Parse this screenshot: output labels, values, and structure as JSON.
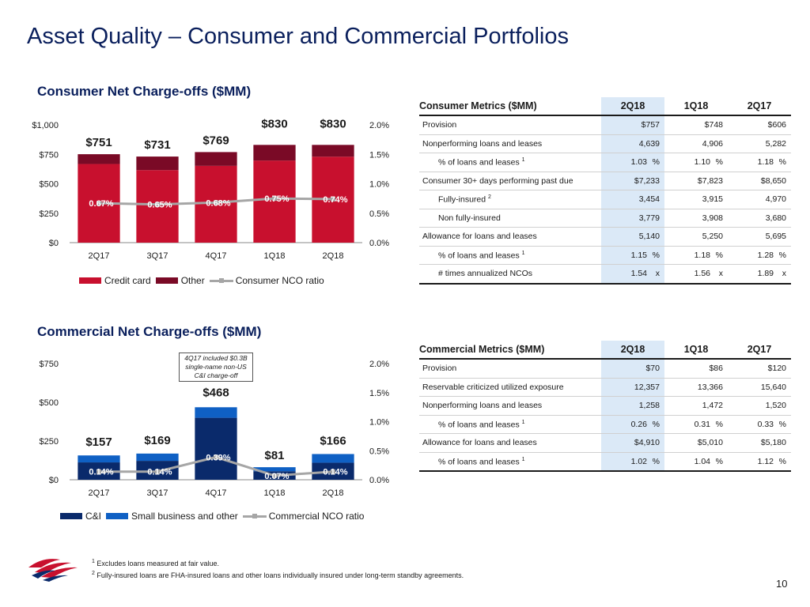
{
  "title": "Asset Quality – Consumer and Commercial Portfolios",
  "consumer_section": {
    "title": "Consumer Net Charge-offs ($MM)",
    "legend": [
      "Credit card",
      "Other",
      "Consumer NCO ratio"
    ],
    "annotation": ""
  },
  "commercial_section": {
    "title": "Commercial Net Charge-offs ($MM)",
    "legend": [
      "C&I",
      "Small business and other",
      "Commercial NCO ratio"
    ],
    "annotation": "4Q17 included $0.3B single-name non-US C&I charge-off"
  },
  "consumer_table": {
    "header": [
      "Consumer Metrics ($MM)",
      "2Q18",
      "1Q18",
      "2Q17"
    ],
    "rows": [
      {
        "label": "Provision",
        "indent": false,
        "sup": "",
        "v": [
          "$757",
          "$748",
          "$606"
        ],
        "unit": ""
      },
      {
        "label": "Nonperforming loans and leases",
        "indent": false,
        "sup": "",
        "v": [
          "4,639",
          "4,906",
          "5,282"
        ],
        "unit": ""
      },
      {
        "label": "% of loans and leases",
        "indent": true,
        "sup": "1",
        "v": [
          "1.03",
          "1.10",
          "1.18"
        ],
        "unit": "%"
      },
      {
        "label": "Consumer 30+ days performing past due",
        "indent": false,
        "sup": "",
        "v": [
          "$7,233",
          "$7,823",
          "$8,650"
        ],
        "unit": ""
      },
      {
        "label": "Fully-insured",
        "indent": true,
        "sup": "2",
        "v": [
          "3,454",
          "3,915",
          "4,970"
        ],
        "unit": ""
      },
      {
        "label": "Non fully-insured",
        "indent": true,
        "sup": "",
        "v": [
          "3,779",
          "3,908",
          "3,680"
        ],
        "unit": ""
      },
      {
        "label": "Allowance for loans and leases",
        "indent": false,
        "sup": "",
        "v": [
          "5,140",
          "5,250",
          "5,695"
        ],
        "unit": ""
      },
      {
        "label": "% of loans and leases",
        "indent": true,
        "sup": "1",
        "v": [
          "1.15",
          "1.18",
          "1.28"
        ],
        "unit": "%"
      },
      {
        "label": "# times annualized NCOs",
        "indent": true,
        "sup": "",
        "v": [
          "1.54",
          "1.56",
          "1.89"
        ],
        "unit": "x"
      }
    ]
  },
  "commercial_table": {
    "header": [
      "Commercial Metrics ($MM)",
      "2Q18",
      "1Q18",
      "2Q17"
    ],
    "rows": [
      {
        "label": "Provision",
        "indent": false,
        "sup": "",
        "v": [
          "$70",
          "$86",
          "$120"
        ],
        "unit": ""
      },
      {
        "label": "Reservable criticized utilized exposure",
        "indent": false,
        "sup": "",
        "v": [
          "12,357",
          "13,366",
          "15,640"
        ],
        "unit": ""
      },
      {
        "label": "Nonperforming loans and leases",
        "indent": false,
        "sup": "",
        "v": [
          "1,258",
          "1,472",
          "1,520"
        ],
        "unit": ""
      },
      {
        "label": "% of loans and leases",
        "indent": true,
        "sup": "1",
        "v": [
          "0.26",
          "0.31",
          "0.33"
        ],
        "unit": "%"
      },
      {
        "label": "Allowance for loans and leases",
        "indent": false,
        "sup": "",
        "v": [
          "$4,910",
          "$5,010",
          "$5,180"
        ],
        "unit": ""
      },
      {
        "label": "% of loans and leases",
        "indent": true,
        "sup": "1",
        "v": [
          "1.02",
          "1.04",
          "1.12"
        ],
        "unit": "%"
      }
    ]
  },
  "footnotes": [
    {
      "num": "1",
      "text": "Excludes loans measured at fair value."
    },
    {
      "num": "2",
      "text": "Fully-insured loans are FHA-insured loans and other loans individually insured under long-term standby agreements."
    }
  ],
  "page_number": "10",
  "colors": {
    "credit_card": "#c8102e",
    "other": "#7a0a26",
    "ci": "#0a2a6b",
    "small_business": "#0f60c4",
    "ratio_line": "#a6a6a6",
    "title": "#0a1f5c",
    "highlight": "#dbe9f7"
  },
  "chart_data": [
    {
      "type": "bar",
      "stacked": true,
      "categories": [
        "2Q17",
        "3Q17",
        "4Q17",
        "1Q18",
        "2Q18"
      ],
      "series": [
        {
          "name": "Credit card",
          "values": [
            668,
            616,
            652,
            697,
            730
          ]
        },
        {
          "name": "Other",
          "values": [
            83,
            115,
            117,
            133,
            100
          ]
        }
      ],
      "totals": [
        751,
        731,
        769,
        830,
        830
      ],
      "total_labels": [
        "$751",
        "$731",
        "$769",
        "$830",
        "$830"
      ],
      "ratio_series": {
        "name": "Consumer NCO ratio",
        "values": [
          0.67,
          0.65,
          0.68,
          0.75,
          0.74
        ],
        "labels": [
          "0.67%",
          "0.65%",
          "0.68%",
          "0.75%",
          "0.74%"
        ]
      },
      "y_ticks": [
        "$0",
        "$250",
        "$500",
        "$750",
        "$1,000"
      ],
      "y2_ticks": [
        "0.0%",
        "0.5%",
        "1.0%",
        "1.5%",
        "2.0%"
      ],
      "ylim": [
        0,
        1000
      ],
      "y2lim": [
        0,
        2.0
      ],
      "legend_position": "bottom"
    },
    {
      "type": "bar",
      "stacked": true,
      "categories": [
        "2Q17",
        "3Q17",
        "4Q17",
        "1Q18",
        "2Q18"
      ],
      "series": [
        {
          "name": "C&I",
          "values": [
            112,
            122,
            400,
            55,
            110
          ]
        },
        {
          "name": "Small business and other",
          "values": [
            45,
            47,
            68,
            26,
            56
          ]
        }
      ],
      "totals": [
        157,
        169,
        468,
        81,
        166
      ],
      "total_labels": [
        "$157",
        "$169",
        "$468",
        "$81",
        "$166"
      ],
      "ratio_series": {
        "name": "Commercial NCO ratio",
        "values": [
          0.14,
          0.14,
          0.39,
          0.07,
          0.14
        ],
        "labels": [
          "0.14%",
          "0.14%",
          "0.39%",
          "0.07%",
          "0.14%"
        ]
      },
      "y_ticks": [
        "$0",
        "$250",
        "$500",
        "$750"
      ],
      "y2_ticks": [
        "0.0%",
        "0.5%",
        "1.0%",
        "1.5%",
        "2.0%"
      ],
      "ylim": [
        0,
        750
      ],
      "y2lim": [
        0,
        2.0
      ],
      "legend_position": "bottom"
    }
  ]
}
